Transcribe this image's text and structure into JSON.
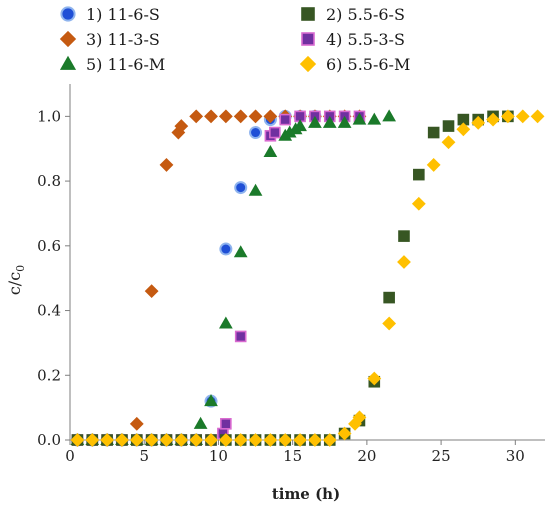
{
  "chart_data": {
    "type": "scatter",
    "xlabel": "time (h)",
    "ylabel": "c/c0",
    "ylabel_main": "c/c",
    "ylabel_sub": "0",
    "xlim": [
      0,
      32
    ],
    "ylim": [
      0,
      1.1
    ],
    "xticks": [
      0,
      5,
      10,
      15,
      20,
      25,
      30
    ],
    "yticks": [
      0.0,
      0.2,
      0.4,
      0.6,
      0.8,
      1.0
    ],
    "xtick_labels": [
      "0",
      "5",
      "10",
      "15",
      "20",
      "25",
      "30"
    ],
    "ytick_labels": [
      "0.0",
      "0.2",
      "0.4",
      "0.6",
      "0.8",
      "1.0"
    ],
    "grid": false,
    "legend_position": "top",
    "series": [
      {
        "name": "1) 11-6-S",
        "marker": "circle",
        "color": "#1f4fd6",
        "edge": "#8fb4ee",
        "points": [
          [
            0.5,
            0
          ],
          [
            1.5,
            0
          ],
          [
            2.5,
            0
          ],
          [
            3.5,
            0
          ],
          [
            4.5,
            0
          ],
          [
            5.5,
            0
          ],
          [
            6.5,
            0
          ],
          [
            7.5,
            0
          ],
          [
            8.5,
            0
          ],
          [
            9.5,
            0.12
          ],
          [
            10.5,
            0.59
          ],
          [
            11.5,
            0.78
          ],
          [
            12.5,
            0.95
          ],
          [
            13.5,
            0.99
          ],
          [
            14.5,
            1.0
          ],
          [
            15.5,
            1.0
          ],
          [
            16.5,
            1.0
          ]
        ]
      },
      {
        "name": "2) 5.5-6-S",
        "marker": "square",
        "color": "#375623",
        "edge": "#375623",
        "points": [
          [
            0.5,
            0
          ],
          [
            1.5,
            0
          ],
          [
            2.5,
            0
          ],
          [
            3.5,
            0
          ],
          [
            4.5,
            0
          ],
          [
            5.5,
            0
          ],
          [
            6.5,
            0
          ],
          [
            7.5,
            0
          ],
          [
            8.5,
            0
          ],
          [
            9.5,
            0
          ],
          [
            10.5,
            0
          ],
          [
            11.5,
            0
          ],
          [
            12.5,
            0
          ],
          [
            13.5,
            0
          ],
          [
            14.5,
            0
          ],
          [
            15.5,
            0
          ],
          [
            16.5,
            0
          ],
          [
            17.5,
            0
          ],
          [
            18.5,
            0.02
          ],
          [
            19.5,
            0.06
          ],
          [
            20.5,
            0.18
          ],
          [
            21.5,
            0.44
          ],
          [
            22.5,
            0.63
          ],
          [
            23.5,
            0.82
          ],
          [
            24.5,
            0.95
          ],
          [
            25.5,
            0.97
          ],
          [
            26.5,
            0.99
          ],
          [
            27.5,
            0.99
          ],
          [
            28.5,
            1.0
          ],
          [
            29.5,
            1.0
          ]
        ]
      },
      {
        "name": "3) 11-3-S",
        "marker": "diamond",
        "color": "#c55a11",
        "edge": "#c55a11",
        "points": [
          [
            0.5,
            0
          ],
          [
            1.5,
            0
          ],
          [
            2.5,
            0
          ],
          [
            3.5,
            0
          ],
          [
            4.5,
            0.05
          ],
          [
            5.5,
            0.46
          ],
          [
            6.5,
            0.85
          ],
          [
            7.3,
            0.95
          ],
          [
            7.5,
            0.97
          ],
          [
            8.5,
            1.0
          ],
          [
            9.5,
            1.0
          ],
          [
            10.5,
            1.0
          ],
          [
            11.5,
            1.0
          ],
          [
            12.5,
            1.0
          ],
          [
            13.5,
            1.0
          ],
          [
            14.5,
            1.0
          ],
          [
            15.5,
            1.0
          ],
          [
            16.5,
            1.0
          ],
          [
            17.5,
            1.0
          ],
          [
            18.5,
            1.0
          ],
          [
            19.5,
            1.0
          ]
        ]
      },
      {
        "name": "4) 5.5-3-S",
        "marker": "square",
        "color": "#7030a0",
        "edge": "#d96ad0",
        "points": [
          [
            0.5,
            0
          ],
          [
            1.5,
            0
          ],
          [
            2.5,
            0
          ],
          [
            3.5,
            0
          ],
          [
            4.5,
            0
          ],
          [
            5.5,
            0
          ],
          [
            6.5,
            0
          ],
          [
            7.5,
            0
          ],
          [
            8.5,
            0
          ],
          [
            9.5,
            0
          ],
          [
            10.3,
            0.02
          ],
          [
            10.5,
            0.05
          ],
          [
            11.5,
            0.32
          ],
          [
            13.5,
            0.94
          ],
          [
            13.8,
            0.95
          ],
          [
            14.5,
            0.99
          ],
          [
            15.5,
            1.0
          ],
          [
            16.5,
            1.0
          ],
          [
            17.5,
            1.0
          ],
          [
            18.5,
            1.0
          ],
          [
            19.5,
            1.0
          ]
        ]
      },
      {
        "name": "5) 11-6-M",
        "marker": "triangle",
        "color": "#1b7a2a",
        "edge": "#1b7a2a",
        "points": [
          [
            0.5,
            0
          ],
          [
            1.5,
            0
          ],
          [
            2.5,
            0
          ],
          [
            3.5,
            0
          ],
          [
            4.5,
            0
          ],
          [
            5.5,
            0
          ],
          [
            6.5,
            0
          ],
          [
            7.5,
            0
          ],
          [
            8.5,
            0
          ],
          [
            8.8,
            0.05
          ],
          [
            9.5,
            0.12
          ],
          [
            10.5,
            0.36
          ],
          [
            11.5,
            0.58
          ],
          [
            12.5,
            0.77
          ],
          [
            13.5,
            0.89
          ],
          [
            14.5,
            0.94
          ],
          [
            14.8,
            0.95
          ],
          [
            15.2,
            0.96
          ],
          [
            15.5,
            0.97
          ],
          [
            16.5,
            0.98
          ],
          [
            17.5,
            0.98
          ],
          [
            18.5,
            0.98
          ],
          [
            19.5,
            0.99
          ],
          [
            20.5,
            0.99
          ],
          [
            21.5,
            1.0
          ]
        ]
      },
      {
        "name": "6) 5.5-6-M",
        "marker": "diamond",
        "color": "#ffc000",
        "edge": "#ffc000",
        "points": [
          [
            0.5,
            0
          ],
          [
            1.5,
            0
          ],
          [
            2.5,
            0
          ],
          [
            3.5,
            0
          ],
          [
            4.5,
            0
          ],
          [
            5.5,
            0
          ],
          [
            6.5,
            0
          ],
          [
            7.5,
            0
          ],
          [
            8.5,
            0
          ],
          [
            9.5,
            0
          ],
          [
            10.5,
            0
          ],
          [
            11.5,
            0
          ],
          [
            12.5,
            0
          ],
          [
            13.5,
            0
          ],
          [
            14.5,
            0
          ],
          [
            15.5,
            0
          ],
          [
            16.5,
            0
          ],
          [
            17.5,
            0
          ],
          [
            18.5,
            0.02
          ],
          [
            19.2,
            0.05
          ],
          [
            19.5,
            0.07
          ],
          [
            20.5,
            0.19
          ],
          [
            21.5,
            0.36
          ],
          [
            22.5,
            0.55
          ],
          [
            23.5,
            0.73
          ],
          [
            24.5,
            0.85
          ],
          [
            25.5,
            0.92
          ],
          [
            26.5,
            0.96
          ],
          [
            27.5,
            0.98
          ],
          [
            28.5,
            0.99
          ],
          [
            29.5,
            1.0
          ],
          [
            30.5,
            1.0
          ],
          [
            31.5,
            1.0
          ]
        ]
      }
    ]
  }
}
